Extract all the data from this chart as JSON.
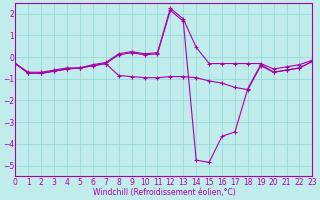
{
  "xlabel": "Windchill (Refroidissement éolien,°C)",
  "bg_color": "#c0ecec",
  "grid_color": "#98d8d8",
  "line_color": "#aa00aa",
  "spine_color": "#aa00aa",
  "xlim": [
    0,
    23
  ],
  "ylim": [
    -5.5,
    2.5
  ],
  "yticks": [
    2,
    1,
    0,
    -1,
    -2,
    -3,
    -4,
    -5
  ],
  "xticks": [
    0,
    1,
    2,
    3,
    4,
    5,
    6,
    7,
    8,
    9,
    10,
    11,
    12,
    13,
    14,
    15,
    16,
    17,
    18,
    19,
    20,
    21,
    22,
    23
  ],
  "lines": [
    {
      "x": [
        0,
        1,
        2,
        3,
        4,
        5,
        6,
        7,
        8,
        9,
        10,
        11,
        12,
        13,
        14,
        15,
        16,
        17,
        18,
        19,
        20,
        21,
        22,
        23
      ],
      "y": [
        -0.3,
        -0.7,
        -0.7,
        -0.6,
        -0.5,
        -0.5,
        -0.35,
        -0.25,
        0.15,
        0.25,
        0.15,
        0.2,
        2.25,
        1.75,
        0.45,
        -0.3,
        -0.3,
        -0.3,
        -0.3,
        -0.3,
        -0.55,
        -0.45,
        -0.35,
        -0.15
      ]
    },
    {
      "x": [
        0,
        1,
        2,
        3,
        4,
        5,
        6,
        7,
        8,
        9,
        10,
        11,
        12,
        13,
        14,
        15,
        16,
        17,
        18,
        19,
        20,
        21,
        22,
        23
      ],
      "y": [
        -0.3,
        -0.75,
        -0.75,
        -0.65,
        -0.55,
        -0.5,
        -0.4,
        -0.3,
        -0.85,
        -0.9,
        -0.95,
        -0.95,
        -0.9,
        -0.9,
        -0.95,
        -1.1,
        -1.2,
        -1.4,
        -1.5,
        -0.4,
        -0.7,
        -0.6,
        -0.5,
        -0.2
      ]
    },
    {
      "x": [
        0,
        1,
        2,
        3,
        4,
        5,
        6,
        7,
        8,
        9,
        10,
        11,
        12,
        13,
        14,
        15,
        16,
        17,
        18,
        19,
        20,
        21,
        22,
        23
      ],
      "y": [
        -0.3,
        -0.75,
        -0.75,
        -0.65,
        -0.55,
        -0.5,
        -0.4,
        -0.3,
        0.1,
        0.2,
        0.1,
        0.15,
        2.15,
        1.65,
        -4.75,
        -4.85,
        -3.65,
        -3.45,
        -1.45,
        -0.35,
        -0.7,
        -0.6,
        -0.5,
        -0.2
      ]
    }
  ],
  "tick_fontsize": 5.5,
  "xlabel_fontsize": 5.5
}
